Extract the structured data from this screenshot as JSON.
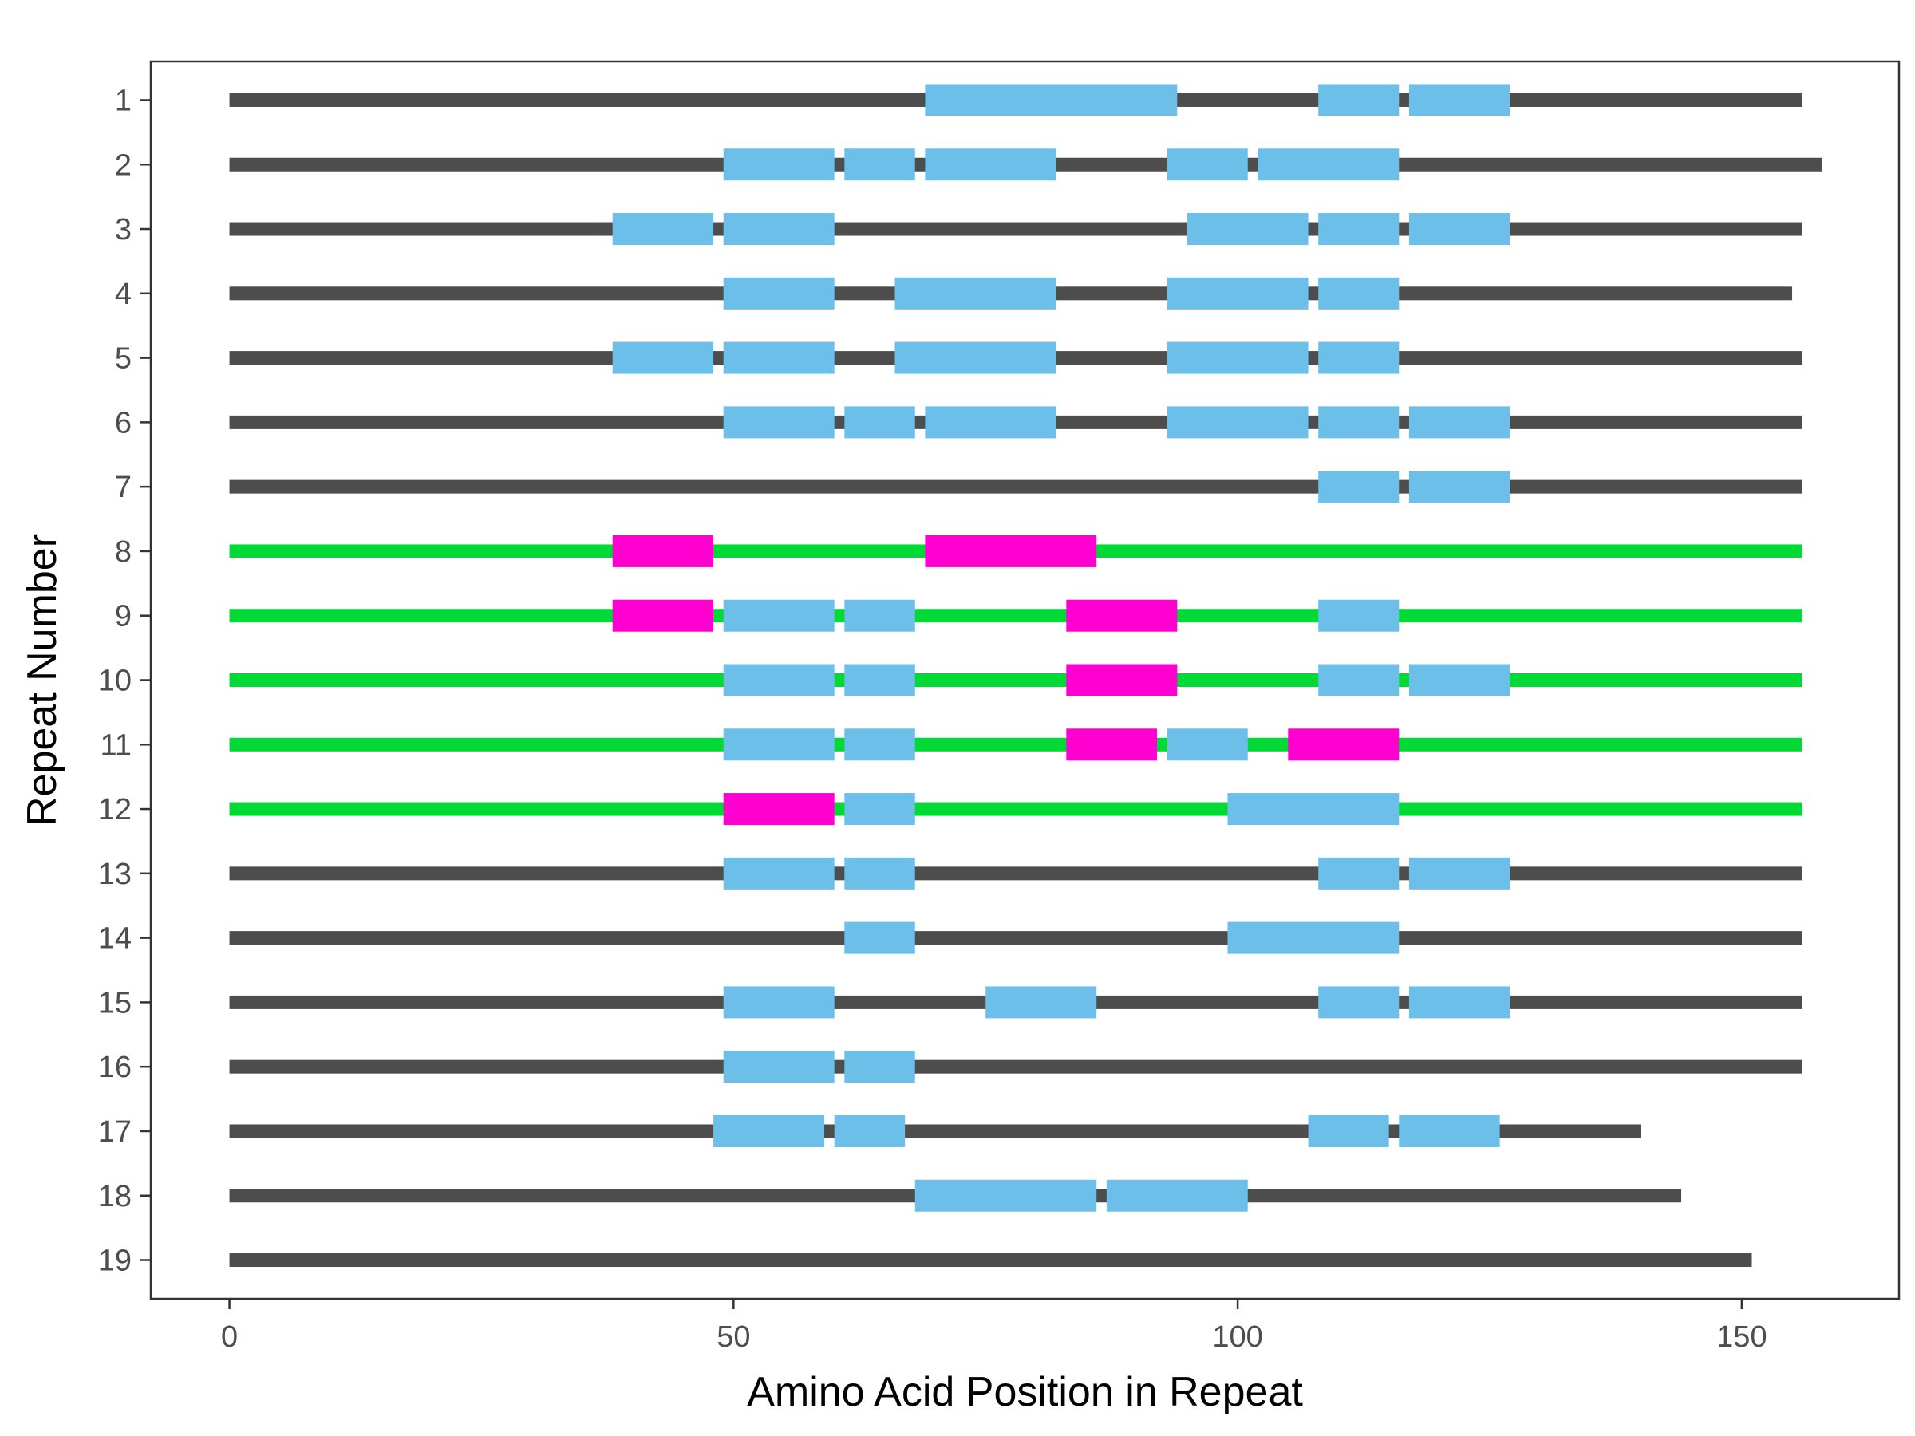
{
  "chart_data": {
    "type": "bar",
    "title": "",
    "xlabel": "Amino Acid Position in Repeat",
    "ylabel": "Repeat Number",
    "xlim": [
      -7.8,
      165.6
    ],
    "ylim": [
      0.4,
      19.6
    ],
    "y_reversed": true,
    "xticks": [
      0,
      50,
      100,
      150
    ],
    "yticks": [
      1,
      2,
      3,
      4,
      5,
      6,
      7,
      8,
      9,
      10,
      11,
      12,
      13,
      14,
      15,
      16,
      17,
      18,
      19
    ],
    "grid": false,
    "legend": "none",
    "colors": {
      "backbone_default": "#4d4d4d",
      "backbone_highlight": "#00d936",
      "segment_blue": "#6bbfe9",
      "segment_magenta": "#ff00d0",
      "panel_border": "#333333"
    },
    "repeats": [
      {
        "repeat": 1,
        "length": 156,
        "highlight": false,
        "segments": [
          {
            "start": 69,
            "end": 94,
            "kind": "blue"
          },
          {
            "start": 108,
            "end": 116,
            "kind": "blue"
          },
          {
            "start": 117,
            "end": 127,
            "kind": "blue"
          }
        ]
      },
      {
        "repeat": 2,
        "length": 158,
        "highlight": false,
        "segments": [
          {
            "start": 49,
            "end": 60,
            "kind": "blue"
          },
          {
            "start": 61,
            "end": 68,
            "kind": "blue"
          },
          {
            "start": 69,
            "end": 82,
            "kind": "blue"
          },
          {
            "start": 93,
            "end": 101,
            "kind": "blue"
          },
          {
            "start": 102,
            "end": 116,
            "kind": "blue"
          }
        ]
      },
      {
        "repeat": 3,
        "length": 156,
        "highlight": false,
        "segments": [
          {
            "start": 38,
            "end": 48,
            "kind": "blue"
          },
          {
            "start": 49,
            "end": 60,
            "kind": "blue"
          },
          {
            "start": 95,
            "end": 107,
            "kind": "blue"
          },
          {
            "start": 108,
            "end": 116,
            "kind": "blue"
          },
          {
            "start": 117,
            "end": 127,
            "kind": "blue"
          }
        ]
      },
      {
        "repeat": 4,
        "length": 155,
        "highlight": false,
        "segments": [
          {
            "start": 49,
            "end": 60,
            "kind": "blue"
          },
          {
            "start": 66,
            "end": 82,
            "kind": "blue"
          },
          {
            "start": 93,
            "end": 107,
            "kind": "blue"
          },
          {
            "start": 108,
            "end": 116,
            "kind": "blue"
          }
        ]
      },
      {
        "repeat": 5,
        "length": 156,
        "highlight": false,
        "segments": [
          {
            "start": 38,
            "end": 48,
            "kind": "blue"
          },
          {
            "start": 49,
            "end": 60,
            "kind": "blue"
          },
          {
            "start": 66,
            "end": 82,
            "kind": "blue"
          },
          {
            "start": 93,
            "end": 107,
            "kind": "blue"
          },
          {
            "start": 108,
            "end": 116,
            "kind": "blue"
          }
        ]
      },
      {
        "repeat": 6,
        "length": 156,
        "highlight": false,
        "segments": [
          {
            "start": 49,
            "end": 60,
            "kind": "blue"
          },
          {
            "start": 61,
            "end": 68,
            "kind": "blue"
          },
          {
            "start": 69,
            "end": 82,
            "kind": "blue"
          },
          {
            "start": 93,
            "end": 107,
            "kind": "blue"
          },
          {
            "start": 108,
            "end": 116,
            "kind": "blue"
          },
          {
            "start": 117,
            "end": 127,
            "kind": "blue"
          }
        ]
      },
      {
        "repeat": 7,
        "length": 156,
        "highlight": false,
        "segments": [
          {
            "start": 108,
            "end": 116,
            "kind": "blue"
          },
          {
            "start": 117,
            "end": 127,
            "kind": "blue"
          }
        ]
      },
      {
        "repeat": 8,
        "length": 156,
        "highlight": true,
        "segments": [
          {
            "start": 38,
            "end": 48,
            "kind": "magenta"
          },
          {
            "start": 69,
            "end": 86,
            "kind": "magenta"
          }
        ]
      },
      {
        "repeat": 9,
        "length": 156,
        "highlight": true,
        "segments": [
          {
            "start": 38,
            "end": 48,
            "kind": "magenta"
          },
          {
            "start": 49,
            "end": 60,
            "kind": "blue"
          },
          {
            "start": 61,
            "end": 68,
            "kind": "blue"
          },
          {
            "start": 83,
            "end": 94,
            "kind": "magenta"
          },
          {
            "start": 108,
            "end": 116,
            "kind": "blue"
          }
        ]
      },
      {
        "repeat": 10,
        "length": 156,
        "highlight": true,
        "segments": [
          {
            "start": 49,
            "end": 60,
            "kind": "blue"
          },
          {
            "start": 61,
            "end": 68,
            "kind": "blue"
          },
          {
            "start": 83,
            "end": 94,
            "kind": "magenta"
          },
          {
            "start": 108,
            "end": 116,
            "kind": "blue"
          },
          {
            "start": 117,
            "end": 127,
            "kind": "blue"
          }
        ]
      },
      {
        "repeat": 11,
        "length": 156,
        "highlight": true,
        "segments": [
          {
            "start": 49,
            "end": 60,
            "kind": "blue"
          },
          {
            "start": 61,
            "end": 68,
            "kind": "blue"
          },
          {
            "start": 83,
            "end": 92,
            "kind": "magenta"
          },
          {
            "start": 93,
            "end": 101,
            "kind": "blue"
          },
          {
            "start": 105,
            "end": 116,
            "kind": "magenta"
          }
        ]
      },
      {
        "repeat": 12,
        "length": 156,
        "highlight": true,
        "segments": [
          {
            "start": 49,
            "end": 60,
            "kind": "magenta"
          },
          {
            "start": 61,
            "end": 68,
            "kind": "blue"
          },
          {
            "start": 99,
            "end": 116,
            "kind": "blue"
          }
        ]
      },
      {
        "repeat": 13,
        "length": 156,
        "highlight": false,
        "segments": [
          {
            "start": 49,
            "end": 60,
            "kind": "blue"
          },
          {
            "start": 61,
            "end": 68,
            "kind": "blue"
          },
          {
            "start": 108,
            "end": 116,
            "kind": "blue"
          },
          {
            "start": 117,
            "end": 127,
            "kind": "blue"
          }
        ]
      },
      {
        "repeat": 14,
        "length": 156,
        "highlight": false,
        "segments": [
          {
            "start": 61,
            "end": 68,
            "kind": "blue"
          },
          {
            "start": 99,
            "end": 116,
            "kind": "blue"
          }
        ]
      },
      {
        "repeat": 15,
        "length": 156,
        "highlight": false,
        "segments": [
          {
            "start": 49,
            "end": 60,
            "kind": "blue"
          },
          {
            "start": 75,
            "end": 86,
            "kind": "blue"
          },
          {
            "start": 108,
            "end": 116,
            "kind": "blue"
          },
          {
            "start": 117,
            "end": 127,
            "kind": "blue"
          }
        ]
      },
      {
        "repeat": 16,
        "length": 156,
        "highlight": false,
        "segments": [
          {
            "start": 49,
            "end": 60,
            "kind": "blue"
          },
          {
            "start": 61,
            "end": 68,
            "kind": "blue"
          }
        ]
      },
      {
        "repeat": 17,
        "length": 140,
        "highlight": false,
        "segments": [
          {
            "start": 48,
            "end": 59,
            "kind": "blue"
          },
          {
            "start": 60,
            "end": 67,
            "kind": "blue"
          },
          {
            "start": 107,
            "end": 115,
            "kind": "blue"
          },
          {
            "start": 116,
            "end": 126,
            "kind": "blue"
          }
        ]
      },
      {
        "repeat": 18,
        "length": 144,
        "highlight": false,
        "segments": [
          {
            "start": 68,
            "end": 86,
            "kind": "blue"
          },
          {
            "start": 87,
            "end": 101,
            "kind": "blue"
          }
        ]
      },
      {
        "repeat": 19,
        "length": 151,
        "highlight": false,
        "segments": []
      }
    ]
  }
}
